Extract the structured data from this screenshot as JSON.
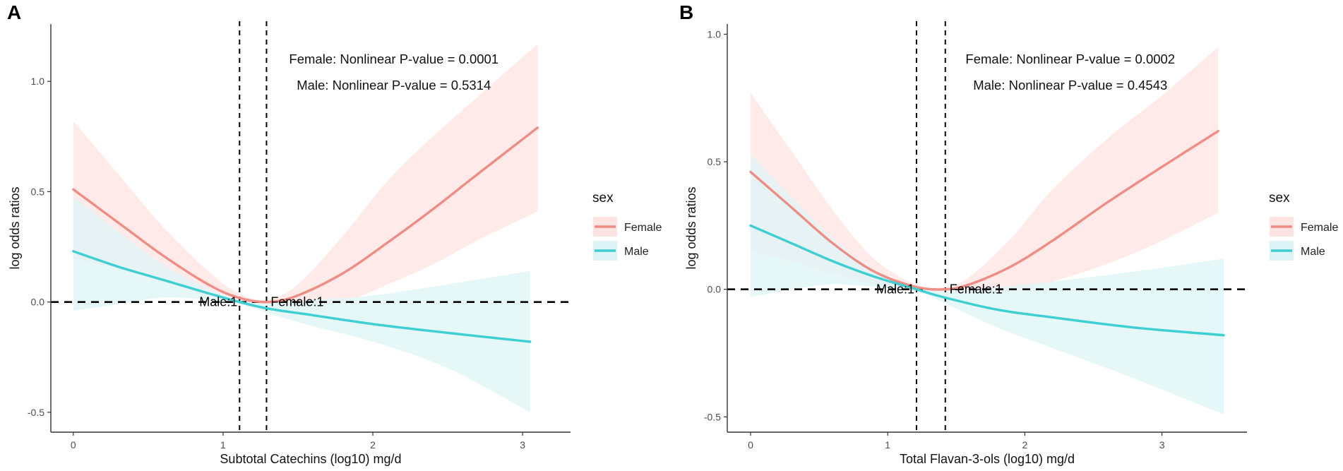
{
  "colors": {
    "female": "#F08C84",
    "male": "#3ECFD2",
    "female_band": "#FDE4E2",
    "male_band": "#DDF4F6",
    "axis": "#333333"
  },
  "chart_data": [
    {
      "panel": "A",
      "type": "line",
      "xlabel": "Subtotal Catechins (log10) mg/d",
      "ylabel": "log odds ratios",
      "xlim": [
        -0.15,
        3.32
      ],
      "ylim": [
        -0.59,
        1.26
      ],
      "xticks": [
        0,
        1,
        2,
        3
      ],
      "yticks": [
        -0.5,
        0.0,
        0.5,
        1.0
      ],
      "ytick_labels": [
        "-0.5",
        "0.0",
        "0.5",
        "1.0"
      ],
      "hline": 0,
      "vlines": [
        1.11,
        1.29
      ],
      "ref_labels": [
        {
          "text": "Male:1",
          "x": 1.11,
          "y": 0,
          "anchor": "end"
        },
        {
          "text": "Female:1",
          "x": 1.29,
          "y": 0,
          "anchor": "start"
        }
      ],
      "annotations": [
        "Female: Nonlinear P-value = 0.0001",
        "Male: Nonlinear P-value = 0.5314"
      ],
      "legend": {
        "title": "sex",
        "entries": [
          "Female",
          "Male"
        ],
        "position": "right"
      },
      "series": [
        {
          "name": "Female",
          "x_end": 3.1,
          "points": [
            [
              0,
              0.51
            ],
            [
              0.3,
              0.36
            ],
            [
              0.6,
              0.21
            ],
            [
              0.9,
              0.08
            ],
            [
              1.1,
              0.02
            ],
            [
              1.3,
              0.0
            ],
            [
              1.5,
              0.03
            ],
            [
              1.8,
              0.13
            ],
            [
              2.1,
              0.27
            ],
            [
              2.4,
              0.42
            ],
            [
              2.7,
              0.58
            ],
            [
              3.1,
              0.79
            ]
          ],
          "upper": [
            [
              0,
              0.82
            ],
            [
              0.3,
              0.58
            ],
            [
              0.6,
              0.34
            ],
            [
              0.9,
              0.14
            ],
            [
              1.1,
              0.04
            ],
            [
              1.3,
              0.01
            ],
            [
              1.5,
              0.08
            ],
            [
              1.8,
              0.3
            ],
            [
              2.1,
              0.55
            ],
            [
              2.4,
              0.75
            ],
            [
              2.7,
              0.93
            ],
            [
              3.1,
              1.17
            ]
          ],
          "lower": [
            [
              0,
              0.2
            ],
            [
              0.3,
              0.15
            ],
            [
              0.6,
              0.09
            ],
            [
              0.9,
              0.03
            ],
            [
              1.1,
              0.0
            ],
            [
              1.3,
              -0.01
            ],
            [
              1.5,
              -0.01
            ],
            [
              1.8,
              0.0
            ],
            [
              2.1,
              0.08
            ],
            [
              2.4,
              0.17
            ],
            [
              2.7,
              0.28
            ],
            [
              3.1,
              0.41
            ]
          ]
        },
        {
          "name": "Male",
          "x_end": 3.05,
          "points": [
            [
              0,
              0.23
            ],
            [
              0.3,
              0.16
            ],
            [
              0.6,
              0.1
            ],
            [
              0.9,
              0.04
            ],
            [
              1.11,
              0.0
            ],
            [
              1.3,
              -0.03
            ],
            [
              1.6,
              -0.06
            ],
            [
              2.0,
              -0.1
            ],
            [
              2.5,
              -0.14
            ],
            [
              3.05,
              -0.18
            ]
          ],
          "upper": [
            [
              0,
              0.48
            ],
            [
              0.3,
              0.32
            ],
            [
              0.6,
              0.17
            ],
            [
              0.9,
              0.06
            ],
            [
              1.11,
              0.01
            ],
            [
              1.3,
              -0.005
            ],
            [
              1.6,
              0.01
            ],
            [
              2.0,
              0.03
            ],
            [
              2.5,
              0.08
            ],
            [
              3.05,
              0.14
            ]
          ],
          "lower": [
            [
              0,
              -0.04
            ],
            [
              0.3,
              -0.01
            ],
            [
              0.6,
              0.02
            ],
            [
              0.9,
              0.01
            ],
            [
              1.11,
              -0.01
            ],
            [
              1.3,
              -0.05
            ],
            [
              1.6,
              -0.11
            ],
            [
              2.0,
              -0.18
            ],
            [
              2.5,
              -0.3
            ],
            [
              3.05,
              -0.5
            ]
          ]
        }
      ]
    },
    {
      "panel": "B",
      "type": "line",
      "xlabel": "Total Flavan-3-ols (log10) mg/d",
      "ylabel": "log odds ratios",
      "xlim": [
        -0.17,
        3.62
      ],
      "ylim": [
        -0.56,
        1.04
      ],
      "xticks": [
        0,
        1,
        2,
        3
      ],
      "yticks": [
        -0.5,
        0.0,
        0.5,
        1.0
      ],
      "ytick_labels": [
        "-0.5",
        "0.0",
        "0.5",
        "1.0"
      ],
      "hline": 0,
      "vlines": [
        1.21,
        1.42
      ],
      "ref_labels": [
        {
          "text": "Male:1",
          "x": 1.21,
          "y": 0,
          "anchor": "end"
        },
        {
          "text": "Female:1",
          "x": 1.42,
          "y": 0,
          "anchor": "start"
        }
      ],
      "annotations": [
        "Female: Nonlinear P-value = 0.0002",
        "Male: Nonlinear P-value = 0.4543"
      ],
      "legend": {
        "title": "sex",
        "entries": [
          "Female",
          "Male"
        ],
        "position": "right"
      },
      "series": [
        {
          "name": "Female",
          "x_end": 3.41,
          "points": [
            [
              0,
              0.46
            ],
            [
              0.3,
              0.32
            ],
            [
              0.6,
              0.18
            ],
            [
              0.9,
              0.07
            ],
            [
              1.2,
              0.01
            ],
            [
              1.42,
              0.0
            ],
            [
              1.6,
              0.02
            ],
            [
              1.9,
              0.09
            ],
            [
              2.2,
              0.19
            ],
            [
              2.6,
              0.34
            ],
            [
              3.0,
              0.48
            ],
            [
              3.41,
              0.62
            ]
          ],
          "upper": [
            [
              0,
              0.77
            ],
            [
              0.3,
              0.54
            ],
            [
              0.6,
              0.31
            ],
            [
              0.9,
              0.12
            ],
            [
              1.2,
              0.02
            ],
            [
              1.42,
              0.01
            ],
            [
              1.6,
              0.05
            ],
            [
              1.9,
              0.2
            ],
            [
              2.2,
              0.39
            ],
            [
              2.6,
              0.59
            ],
            [
              3.0,
              0.76
            ],
            [
              3.41,
              0.95
            ]
          ],
          "lower": [
            [
              0,
              0.15
            ],
            [
              0.3,
              0.11
            ],
            [
              0.6,
              0.06
            ],
            [
              0.9,
              0.02
            ],
            [
              1.2,
              0.0
            ],
            [
              1.42,
              -0.01
            ],
            [
              1.6,
              -0.01
            ],
            [
              1.9,
              -0.01
            ],
            [
              2.2,
              0.03
            ],
            [
              2.6,
              0.1
            ],
            [
              3.0,
              0.19
            ],
            [
              3.41,
              0.3
            ]
          ]
        },
        {
          "name": "Male",
          "x_end": 3.45,
          "points": [
            [
              0,
              0.25
            ],
            [
              0.3,
              0.18
            ],
            [
              0.6,
              0.11
            ],
            [
              0.9,
              0.05
            ],
            [
              1.21,
              0.0
            ],
            [
              1.4,
              -0.03
            ],
            [
              1.8,
              -0.08
            ],
            [
              2.2,
              -0.11
            ],
            [
              2.8,
              -0.15
            ],
            [
              3.45,
              -0.18
            ]
          ],
          "upper": [
            [
              0,
              0.53
            ],
            [
              0.3,
              0.36
            ],
            [
              0.6,
              0.2
            ],
            [
              0.9,
              0.08
            ],
            [
              1.21,
              0.01
            ],
            [
              1.4,
              -0.005
            ],
            [
              1.8,
              0.01
            ],
            [
              2.2,
              0.03
            ],
            [
              2.8,
              0.07
            ],
            [
              3.45,
              0.12
            ]
          ],
          "lower": [
            [
              0,
              -0.03
            ],
            [
              0.3,
              0.0
            ],
            [
              0.6,
              0.02
            ],
            [
              0.9,
              0.01
            ],
            [
              1.21,
              -0.01
            ],
            [
              1.4,
              -0.05
            ],
            [
              1.8,
              -0.15
            ],
            [
              2.2,
              -0.23
            ],
            [
              2.8,
              -0.35
            ],
            [
              3.45,
              -0.49
            ]
          ]
        }
      ]
    }
  ],
  "panels": [
    "A",
    "B"
  ]
}
